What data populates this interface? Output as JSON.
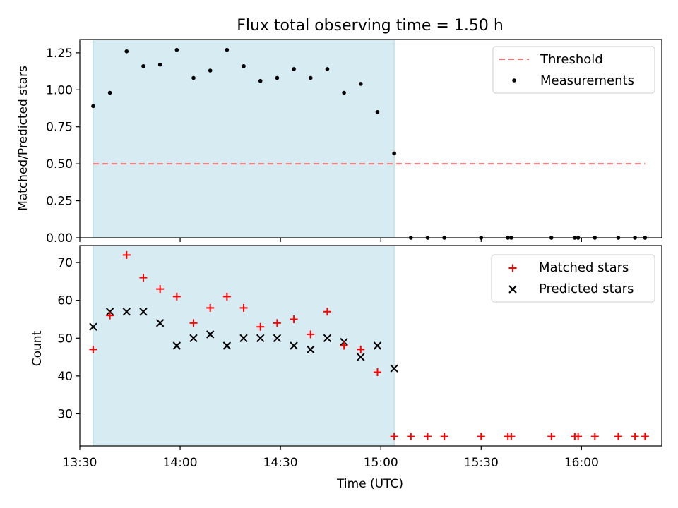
{
  "title": "Flux total observing time = 1.50 h",
  "colors": {
    "shade": "#add8e6",
    "threshold": "#ff7070",
    "measurement": "#000000",
    "matched": "#ff0000",
    "predicted": "#000000"
  },
  "chart_data": [
    {
      "type": "scatter",
      "panel": "top",
      "ylabel": "Matched/Predicted stars",
      "ylim": [
        0,
        1.34
      ],
      "yticks": [
        0,
        0.25,
        0.5,
        0.75,
        1.0,
        1.25
      ],
      "ytick_labels": [
        "0.00",
        "0.25",
        "0.50",
        "0.75",
        "1.00",
        "1.25"
      ],
      "shaded_region": {
        "start": "13:34",
        "end": "15:04"
      },
      "legend_position": "top-right",
      "series": [
        {
          "name": "Threshold",
          "type": "line",
          "style": "dashed",
          "x": [
            "13:34",
            "16:19"
          ],
          "values": [
            0.5,
            0.5
          ]
        },
        {
          "name": "Measurements",
          "type": "scatter",
          "x": [
            "13:34",
            "13:39",
            "13:44",
            "13:49",
            "13:54",
            "13:59",
            "14:04",
            "14:09",
            "14:14",
            "14:19",
            "14:24",
            "14:29",
            "14:34",
            "14:39",
            "14:44",
            "14:49",
            "14:54",
            "14:59",
            "15:04",
            "15:09",
            "15:14",
            "15:19",
            "15:30",
            "15:38",
            "15:39",
            "15:51",
            "15:58",
            "15:59",
            "16:04",
            "16:11",
            "16:16",
            "16:19"
          ],
          "values": [
            0.89,
            0.98,
            1.26,
            1.16,
            1.17,
            1.27,
            1.08,
            1.13,
            1.27,
            1.16,
            1.06,
            1.08,
            1.14,
            1.08,
            1.14,
            0.98,
            1.04,
            0.85,
            0.57,
            0,
            0,
            0,
            0,
            0,
            0,
            0,
            0,
            0,
            0,
            0,
            0,
            0
          ]
        }
      ]
    },
    {
      "type": "scatter",
      "panel": "bottom",
      "ylabel": "Count",
      "xlabel": "Time (UTC)",
      "ylim": [
        21.5,
        74.5
      ],
      "yticks": [
        30,
        40,
        50,
        60,
        70
      ],
      "ytick_labels": [
        "30",
        "40",
        "50",
        "60",
        "70"
      ],
      "xlim": [
        "13:30",
        "16:24"
      ],
      "xticks": [
        "13:30",
        "14:00",
        "14:30",
        "15:00",
        "15:30",
        "16:00"
      ],
      "shaded_region": {
        "start": "13:34",
        "end": "15:04"
      },
      "legend_position": "top-right",
      "series": [
        {
          "name": "Matched stars",
          "marker": "+",
          "x": [
            "13:34",
            "13:39",
            "13:44",
            "13:49",
            "13:54",
            "13:59",
            "14:04",
            "14:09",
            "14:14",
            "14:19",
            "14:24",
            "14:29",
            "14:34",
            "14:39",
            "14:44",
            "14:49",
            "14:54",
            "14:59",
            "15:04",
            "15:09",
            "15:14",
            "15:19",
            "15:30",
            "15:38",
            "15:39",
            "15:51",
            "15:58",
            "15:59",
            "16:04",
            "16:11",
            "16:16",
            "16:19"
          ],
          "values": [
            47,
            56,
            72,
            66,
            63,
            61,
            54,
            58,
            61,
            58,
            53,
            54,
            55,
            51,
            57,
            48,
            47,
            41,
            24,
            24,
            24,
            24,
            24,
            24,
            24,
            24,
            24,
            24,
            24,
            24,
            24,
            24
          ]
        },
        {
          "name": "Predicted stars",
          "marker": "x",
          "x": [
            "13:34",
            "13:39",
            "13:44",
            "13:49",
            "13:54",
            "13:59",
            "14:04",
            "14:09",
            "14:14",
            "14:19",
            "14:24",
            "14:29",
            "14:34",
            "14:39",
            "14:44",
            "14:49",
            "14:54",
            "14:59",
            "15:04"
          ],
          "values": [
            53,
            57,
            57,
            57,
            54,
            48,
            50,
            51,
            48,
            50,
            50,
            50,
            48,
            47,
            50,
            49,
            45,
            48,
            42
          ]
        }
      ]
    }
  ]
}
